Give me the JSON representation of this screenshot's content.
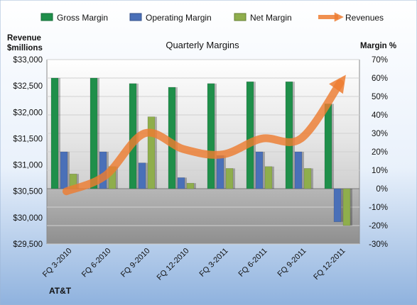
{
  "chart_data": {
    "type": "bar",
    "title": "Quarterly Margins",
    "company": "AT&T",
    "left_axis_title_line1": "Revenue",
    "left_axis_title_line2": "$millions",
    "right_axis_title": "Margin %",
    "categories": [
      "FQ 3-2010",
      "FQ 6-2010",
      "FQ 9-2010",
      "FQ 12-2010",
      "FQ 3-2011",
      "FQ 6-2011",
      "FQ 9-2011",
      "FQ 12-2011"
    ],
    "series": [
      {
        "name": "Gross Margin",
        "axis": "right",
        "kind": "bar",
        "color": "#1f8f4a",
        "values": [
          60,
          60,
          57,
          55,
          57,
          58,
          58,
          46
        ]
      },
      {
        "name": "Operating Margin",
        "axis": "right",
        "kind": "bar",
        "color": "#4a70b8",
        "values": [
          20,
          20,
          14,
          6,
          18,
          20,
          20,
          -18
        ]
      },
      {
        "name": "Net Margin",
        "axis": "right",
        "kind": "bar",
        "color": "#8fae4c",
        "values": [
          8,
          12,
          39,
          3,
          11,
          12,
          11,
          -20
        ]
      },
      {
        "name": "Revenues",
        "axis": "left",
        "kind": "line",
        "color": "#ed7d31",
        "values": [
          30500,
          30800,
          31600,
          31300,
          31200,
          31500,
          31500,
          32550
        ]
      }
    ],
    "left_ylim": [
      29500,
      33000
    ],
    "left_ticks": [
      "$29,500",
      "$30,000",
      "$30,500",
      "$31,000",
      "$31,500",
      "$32,000",
      "$32,500",
      "$33,000"
    ],
    "right_ylim": [
      -30,
      70
    ],
    "right_ticks": [
      "-30%",
      "-20%",
      "-10%",
      "0%",
      "10%",
      "20%",
      "30%",
      "40%",
      "50%",
      "60%",
      "70%"
    ],
    "legend_position": "top"
  }
}
